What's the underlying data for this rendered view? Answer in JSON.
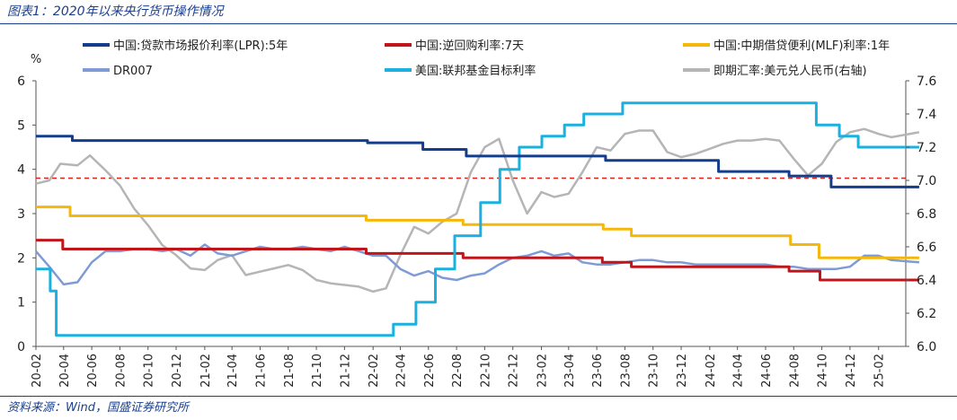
{
  "page": {
    "title": "图表1：2020年以来央行货币操作情况",
    "source": "资料来源：Wind，国盛证券研究所"
  },
  "chart_data": {
    "type": "line",
    "y_unit_label": "%",
    "ylim": [
      0,
      6
    ],
    "yticks": [
      0,
      1,
      2,
      3,
      4,
      5,
      6
    ],
    "y2lim": [
      6.0,
      7.6
    ],
    "y2ticks": [
      6.0,
      6.2,
      6.4,
      6.6,
      6.8,
      7.0,
      7.2,
      7.4,
      7.6
    ],
    "x_range": [
      "2020-02",
      "2025-04"
    ],
    "x_tick_labels": [
      "20-02",
      "20-04",
      "20-06",
      "20-08",
      "20-10",
      "20-12",
      "21-02",
      "21-04",
      "21-06",
      "21-08",
      "21-10",
      "21-12",
      "22-02",
      "22-04",
      "22-06",
      "22-08",
      "22-10",
      "22-12",
      "23-02",
      "23-04",
      "23-06",
      "23-08",
      "23-10",
      "23-12",
      "24-02",
      "24-04",
      "24-06",
      "24-08",
      "24-10",
      "24-12",
      "25-02"
    ],
    "reference_line": {
      "y": 3.8,
      "color": "#e0201a",
      "style": "dashed"
    },
    "legend": [
      "中国:贷款市场报价利率(LPR):5年",
      "中国:逆回购利率:7天",
      "中国:中期借贷便利(MLF)利率:1年",
      "DR007",
      "美国:联邦基金目标利率",
      "即期汇率:美元兑人民币(右轴)"
    ],
    "series": [
      {
        "name": "中国:贷款市场报价利率(LPR):5年",
        "color": "#143d8c",
        "axis": "left",
        "step": true,
        "points": [
          [
            "2020-02-01",
            4.75
          ],
          [
            "2020-04-20",
            4.65
          ],
          [
            "2022-01-20",
            4.6
          ],
          [
            "2022-05-20",
            4.45
          ],
          [
            "2022-08-22",
            4.3
          ],
          [
            "2023-06-20",
            4.2
          ],
          [
            "2024-02-20",
            3.95
          ],
          [
            "2024-07-22",
            3.85
          ],
          [
            "2024-10-21",
            3.6
          ],
          [
            "2025-04-30",
            3.6
          ]
        ]
      },
      {
        "name": "中国:逆回购利率:7天",
        "color": "#c0161b",
        "axis": "left",
        "step": true,
        "points": [
          [
            "2020-02-01",
            2.4
          ],
          [
            "2020-03-30",
            2.2
          ],
          [
            "2022-01-17",
            2.1
          ],
          [
            "2022-08-15",
            2.0
          ],
          [
            "2023-06-13",
            1.9
          ],
          [
            "2023-08-15",
            1.8
          ],
          [
            "2024-07-22",
            1.7
          ],
          [
            "2024-09-27",
            1.5
          ],
          [
            "2025-04-30",
            1.5
          ]
        ]
      },
      {
        "name": "中国:中期借贷便利(MLF)利率:1年",
        "color": "#f5b80a",
        "axis": "left",
        "step": true,
        "points": [
          [
            "2020-02-01",
            3.15
          ],
          [
            "2020-04-15",
            2.95
          ],
          [
            "2022-01-17",
            2.85
          ],
          [
            "2022-08-15",
            2.75
          ],
          [
            "2023-06-15",
            2.65
          ],
          [
            "2023-08-15",
            2.5
          ],
          [
            "2024-07-25",
            2.3
          ],
          [
            "2024-09-25",
            2.0
          ],
          [
            "2025-04-30",
            2.0
          ]
        ]
      },
      {
        "name": "DR007",
        "color": "#7f9bd6",
        "axis": "left",
        "step": false,
        "points": [
          [
            "2020-02-01",
            2.15
          ],
          [
            "2020-03-01",
            1.8
          ],
          [
            "2020-04-01",
            1.4
          ],
          [
            "2020-05-01",
            1.45
          ],
          [
            "2020-06-01",
            1.9
          ],
          [
            "2020-07-01",
            2.15
          ],
          [
            "2020-08-01",
            2.15
          ],
          [
            "2020-09-01",
            2.2
          ],
          [
            "2020-10-01",
            2.2
          ],
          [
            "2020-11-01",
            2.15
          ],
          [
            "2020-12-01",
            2.2
          ],
          [
            "2021-01-01",
            2.05
          ],
          [
            "2021-02-01",
            2.3
          ],
          [
            "2021-03-01",
            2.1
          ],
          [
            "2021-04-01",
            2.05
          ],
          [
            "2021-05-01",
            2.15
          ],
          [
            "2021-06-01",
            2.25
          ],
          [
            "2021-07-01",
            2.2
          ],
          [
            "2021-08-01",
            2.2
          ],
          [
            "2021-09-01",
            2.25
          ],
          [
            "2021-10-01",
            2.2
          ],
          [
            "2021-11-01",
            2.15
          ],
          [
            "2021-12-01",
            2.25
          ],
          [
            "2022-01-01",
            2.15
          ],
          [
            "2022-02-01",
            2.05
          ],
          [
            "2022-03-01",
            2.05
          ],
          [
            "2022-04-01",
            1.75
          ],
          [
            "2022-05-01",
            1.6
          ],
          [
            "2022-06-01",
            1.7
          ],
          [
            "2022-07-01",
            1.55
          ],
          [
            "2022-08-01",
            1.5
          ],
          [
            "2022-09-01",
            1.6
          ],
          [
            "2022-10-01",
            1.65
          ],
          [
            "2022-11-01",
            1.85
          ],
          [
            "2022-12-01",
            2.0
          ],
          [
            "2023-01-01",
            2.05
          ],
          [
            "2023-02-01",
            2.15
          ],
          [
            "2023-03-01",
            2.05
          ],
          [
            "2023-04-01",
            2.1
          ],
          [
            "2023-05-01",
            1.9
          ],
          [
            "2023-06-01",
            1.85
          ],
          [
            "2023-07-01",
            1.85
          ],
          [
            "2023-08-01",
            1.9
          ],
          [
            "2023-09-01",
            1.95
          ],
          [
            "2023-10-01",
            1.95
          ],
          [
            "2023-11-01",
            1.9
          ],
          [
            "2023-12-01",
            1.9
          ],
          [
            "2024-01-01",
            1.85
          ],
          [
            "2024-02-01",
            1.85
          ],
          [
            "2024-03-01",
            1.85
          ],
          [
            "2024-04-01",
            1.85
          ],
          [
            "2024-05-01",
            1.85
          ],
          [
            "2024-06-01",
            1.85
          ],
          [
            "2024-07-01",
            1.8
          ],
          [
            "2024-08-01",
            1.8
          ],
          [
            "2024-09-01",
            1.75
          ],
          [
            "2024-10-01",
            1.75
          ],
          [
            "2024-11-01",
            1.75
          ],
          [
            "2024-12-01",
            1.8
          ],
          [
            "2025-01-01",
            2.05
          ],
          [
            "2025-02-01",
            2.05
          ],
          [
            "2025-03-01",
            1.95
          ],
          [
            "2025-04-30",
            1.9
          ]
        ]
      },
      {
        "name": "美国:联邦基金目标利率",
        "color": "#1ab0e0",
        "axis": "left",
        "step": true,
        "points": [
          [
            "2020-02-01",
            1.75
          ],
          [
            "2020-03-03",
            1.25
          ],
          [
            "2020-03-16",
            0.25
          ],
          [
            "2022-03-17",
            0.5
          ],
          [
            "2022-05-05",
            1.0
          ],
          [
            "2022-06-16",
            1.75
          ],
          [
            "2022-07-28",
            2.5
          ],
          [
            "2022-09-22",
            3.25
          ],
          [
            "2022-11-03",
            4.0
          ],
          [
            "2022-12-15",
            4.5
          ],
          [
            "2023-02-02",
            4.75
          ],
          [
            "2023-03-23",
            5.0
          ],
          [
            "2023-05-04",
            5.25
          ],
          [
            "2023-07-27",
            5.5
          ],
          [
            "2024-09-19",
            5.0
          ],
          [
            "2024-11-08",
            4.75
          ],
          [
            "2024-12-19",
            4.5
          ],
          [
            "2025-04-30",
            4.5
          ]
        ]
      },
      {
        "name": "即期汇率:美元兑人民币(右轴)",
        "color": "#b5b5b5",
        "axis": "right",
        "step": false,
        "points": [
          [
            "2020-02-01",
            6.98
          ],
          [
            "2020-03-01",
            7.0
          ],
          [
            "2020-03-25",
            7.1
          ],
          [
            "2020-05-01",
            7.09
          ],
          [
            "2020-05-28",
            7.15
          ],
          [
            "2020-07-01",
            7.06
          ],
          [
            "2020-08-01",
            6.97
          ],
          [
            "2020-09-01",
            6.83
          ],
          [
            "2020-10-01",
            6.73
          ],
          [
            "2020-11-01",
            6.61
          ],
          [
            "2020-12-01",
            6.55
          ],
          [
            "2021-01-01",
            6.47
          ],
          [
            "2021-02-01",
            6.46
          ],
          [
            "2021-03-01",
            6.52
          ],
          [
            "2021-04-01",
            6.55
          ],
          [
            "2021-05-01",
            6.43
          ],
          [
            "2021-06-01",
            6.45
          ],
          [
            "2021-07-01",
            6.47
          ],
          [
            "2021-08-01",
            6.49
          ],
          [
            "2021-09-01",
            6.46
          ],
          [
            "2021-10-01",
            6.4
          ],
          [
            "2021-11-01",
            6.38
          ],
          [
            "2021-12-01",
            6.37
          ],
          [
            "2022-01-01",
            6.36
          ],
          [
            "2022-02-01",
            6.33
          ],
          [
            "2022-03-01",
            6.35
          ],
          [
            "2022-04-01",
            6.55
          ],
          [
            "2022-05-01",
            6.72
          ],
          [
            "2022-06-01",
            6.68
          ],
          [
            "2022-07-01",
            6.75
          ],
          [
            "2022-08-01",
            6.8
          ],
          [
            "2022-09-01",
            7.05
          ],
          [
            "2022-10-01",
            7.2
          ],
          [
            "2022-11-01",
            7.25
          ],
          [
            "2022-12-01",
            7.0
          ],
          [
            "2023-01-01",
            6.8
          ],
          [
            "2023-02-01",
            6.93
          ],
          [
            "2023-03-01",
            6.9
          ],
          [
            "2023-04-01",
            6.92
          ],
          [
            "2023-05-01",
            7.05
          ],
          [
            "2023-06-01",
            7.2
          ],
          [
            "2023-07-01",
            7.18
          ],
          [
            "2023-08-01",
            7.28
          ],
          [
            "2023-09-01",
            7.3
          ],
          [
            "2023-10-01",
            7.3
          ],
          [
            "2023-11-01",
            7.17
          ],
          [
            "2023-12-01",
            7.14
          ],
          [
            "2024-01-01",
            7.16
          ],
          [
            "2024-02-01",
            7.19
          ],
          [
            "2024-03-01",
            7.22
          ],
          [
            "2024-04-01",
            7.24
          ],
          [
            "2024-05-01",
            7.24
          ],
          [
            "2024-06-01",
            7.25
          ],
          [
            "2024-07-01",
            7.24
          ],
          [
            "2024-08-01",
            7.13
          ],
          [
            "2024-09-01",
            7.03
          ],
          [
            "2024-10-01",
            7.1
          ],
          [
            "2024-11-01",
            7.23
          ],
          [
            "2024-12-01",
            7.29
          ],
          [
            "2025-01-01",
            7.31
          ],
          [
            "2025-02-01",
            7.28
          ],
          [
            "2025-03-01",
            7.26
          ],
          [
            "2025-04-30",
            7.29
          ]
        ]
      }
    ]
  }
}
